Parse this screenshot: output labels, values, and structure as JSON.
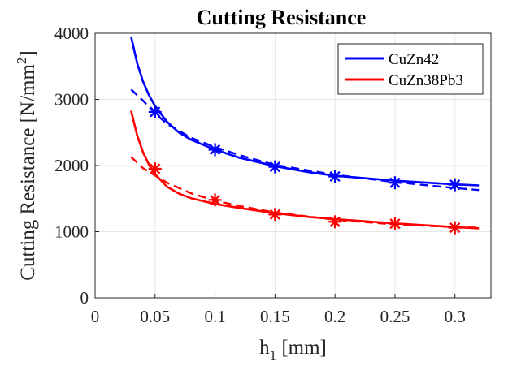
{
  "chart_data": {
    "type": "line",
    "title": "Cutting Resistance",
    "xlabel": {
      "main": "h",
      "sub": "1",
      "rest": " [mm]"
    },
    "ylabel": {
      "main": "Cutting Resistance [N/mm",
      "sup": "2",
      "rest": "]"
    },
    "xlim": [
      0,
      0.33
    ],
    "ylim": [
      0,
      4000
    ],
    "x_ticks": [
      0,
      0.05,
      0.1,
      0.15,
      0.2,
      0.25,
      0.3
    ],
    "x_tick_labels": [
      "0",
      "0.05",
      "0.1",
      "0.15",
      "0.2",
      "0.25",
      "0.3"
    ],
    "y_ticks": [
      0,
      1000,
      2000,
      3000,
      4000
    ],
    "y_tick_labels": [
      "0",
      "1000",
      "2000",
      "3000",
      "4000"
    ],
    "grid": true,
    "legend_position": "top-right",
    "series": [
      {
        "name": "CuZn42",
        "color": "#0000ff",
        "markers": {
          "x": [
            0.05,
            0.1,
            0.15,
            0.2,
            0.25,
            0.3
          ],
          "y": [
            2810,
            2240,
            1980,
            1835,
            1740,
            1710
          ]
        },
        "solid_fit": {
          "x": [
            0.03,
            0.035,
            0.04,
            0.045,
            0.05,
            0.06,
            0.07,
            0.08,
            0.1,
            0.12,
            0.15,
            0.18,
            0.2,
            0.25,
            0.3,
            0.32
          ],
          "y": [
            3950,
            3550,
            3270,
            3060,
            2900,
            2660,
            2500,
            2390,
            2240,
            2120,
            1990,
            1895,
            1845,
            1770,
            1715,
            1700
          ]
        },
        "dashed_fit": {
          "x": [
            0.03,
            0.04,
            0.05,
            0.06,
            0.08,
            0.1,
            0.12,
            0.15,
            0.2,
            0.25,
            0.3,
            0.32
          ],
          "y": [
            3150,
            2980,
            2790,
            2630,
            2420,
            2280,
            2160,
            2010,
            1860,
            1750,
            1660,
            1630
          ]
        }
      },
      {
        "name": "CuZn38Pb3",
        "color": "#ff0000",
        "markers": {
          "x": [
            0.05,
            0.1,
            0.15,
            0.2,
            0.25,
            0.3
          ],
          "y": [
            1950,
            1480,
            1260,
            1150,
            1120,
            1060
          ]
        },
        "solid_fit": {
          "x": [
            0.03,
            0.035,
            0.04,
            0.045,
            0.05,
            0.06,
            0.07,
            0.08,
            0.1,
            0.12,
            0.15,
            0.18,
            0.2,
            0.25,
            0.3,
            0.32
          ],
          "y": [
            2830,
            2460,
            2200,
            2010,
            1870,
            1680,
            1575,
            1505,
            1420,
            1360,
            1280,
            1220,
            1190,
            1125,
            1070,
            1050
          ]
        },
        "dashed_fit": {
          "x": [
            0.03,
            0.04,
            0.05,
            0.06,
            0.08,
            0.1,
            0.12,
            0.15,
            0.2,
            0.25,
            0.3,
            0.32
          ],
          "y": [
            2130,
            1960,
            1850,
            1740,
            1580,
            1470,
            1390,
            1290,
            1180,
            1110,
            1070,
            1060
          ]
        }
      }
    ]
  }
}
